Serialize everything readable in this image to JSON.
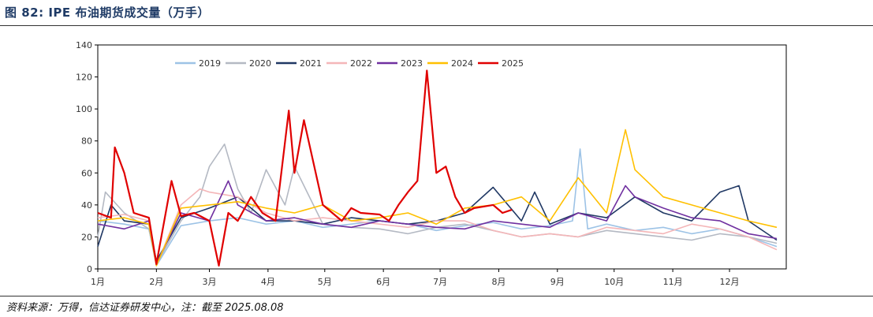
{
  "header": {
    "title": "图 82:  IPE 布油期货成交量（万手）"
  },
  "footer": {
    "source": "资料来源：万得，信达证券研发中心，注：截至 2025.08.08"
  },
  "chart_data": {
    "type": "line",
    "title": "IPE 布油期货成交量（万手）",
    "xlabel": "",
    "ylabel": "",
    "ylim": [
      0,
      140
    ],
    "yticks": [
      0,
      20,
      40,
      60,
      80,
      100,
      120,
      140
    ],
    "month_labels": [
      "1月",
      "2月",
      "3月",
      "4月",
      "5月",
      "6月",
      "7月",
      "8月",
      "9月",
      "10月",
      "11月",
      "12月"
    ],
    "x_unit": "day of year (approx.)",
    "legend_position": "top-center",
    "series": [
      {
        "name": "2019",
        "color": "#9dc3e6",
        "x": [
          1,
          15,
          28,
          32,
          45,
          60,
          75,
          90,
          105,
          120,
          135,
          150,
          165,
          180,
          195,
          210,
          225,
          240,
          252,
          256,
          260,
          270,
          285,
          300,
          315,
          330,
          345,
          360
        ],
        "values": [
          30,
          28,
          25,
          2,
          27,
          30,
          32,
          28,
          30,
          26,
          28,
          30,
          28,
          24,
          27,
          29,
          25,
          27,
          30,
          75,
          25,
          28,
          24,
          26,
          22,
          25,
          20,
          14
        ]
      },
      {
        "name": "2020",
        "color": "#b4b9c3",
        "x": [
          1,
          5,
          15,
          28,
          32,
          45,
          55,
          60,
          68,
          75,
          82,
          90,
          100,
          105,
          120,
          135,
          150,
          165,
          180,
          195,
          210,
          225,
          240,
          255,
          270,
          285,
          300,
          315,
          330,
          345,
          360
        ],
        "values": [
          20,
          48,
          35,
          25,
          3,
          30,
          45,
          64,
          78,
          50,
          35,
          62,
          40,
          64,
          28,
          26,
          25,
          22,
          26,
          28,
          24,
          20,
          22,
          20,
          24,
          22,
          20,
          18,
          22,
          20,
          16
        ]
      },
      {
        "name": "2021",
        "color": "#203864",
        "x": [
          1,
          8,
          15,
          28,
          32,
          45,
          60,
          75,
          90,
          105,
          120,
          135,
          150,
          165,
          180,
          195,
          210,
          225,
          232,
          240,
          255,
          270,
          285,
          300,
          315,
          330,
          340,
          345,
          360
        ],
        "values": [
          14,
          40,
          30,
          28,
          5,
          32,
          38,
          45,
          30,
          30,
          28,
          32,
          30,
          28,
          30,
          35,
          51,
          30,
          48,
          28,
          35,
          32,
          45,
          35,
          30,
          48,
          52,
          30,
          18
        ]
      },
      {
        "name": "2022",
        "color": "#f4b6b8",
        "x": [
          1,
          15,
          28,
          32,
          45,
          55,
          60,
          75,
          90,
          105,
          120,
          135,
          150,
          165,
          180,
          195,
          210,
          225,
          240,
          255,
          270,
          285,
          300,
          315,
          330,
          345,
          360
        ],
        "values": [
          32,
          34,
          30,
          2,
          40,
          50,
          48,
          45,
          35,
          30,
          32,
          30,
          28,
          26,
          30,
          30,
          24,
          20,
          22,
          20,
          26,
          24,
          22,
          28,
          25,
          20,
          12
        ]
      },
      {
        "name": "2023",
        "color": "#7030a0",
        "x": [
          1,
          15,
          28,
          32,
          45,
          60,
          70,
          75,
          90,
          105,
          120,
          135,
          150,
          165,
          180,
          195,
          210,
          225,
          240,
          255,
          270,
          280,
          285,
          300,
          315,
          330,
          345,
          360
        ],
        "values": [
          28,
          25,
          30,
          3,
          35,
          30,
          55,
          40,
          30,
          32,
          28,
          26,
          30,
          28,
          26,
          25,
          30,
          28,
          26,
          35,
          30,
          52,
          45,
          38,
          32,
          30,
          22,
          19
        ]
      },
      {
        "name": "2024",
        "color": "#ffc000",
        "x": [
          1,
          15,
          28,
          32,
          45,
          60,
          75,
          90,
          105,
          120,
          135,
          150,
          165,
          180,
          195,
          210,
          225,
          240,
          255,
          270,
          280,
          285,
          300,
          315,
          330,
          345,
          360
        ],
        "values": [
          30,
          32,
          28,
          2,
          38,
          40,
          42,
          38,
          35,
          40,
          30,
          32,
          35,
          28,
          38,
          40,
          45,
          30,
          57,
          35,
          87,
          62,
          45,
          40,
          35,
          30,
          26
        ]
      },
      {
        "name": "2025",
        "color": "#e00000",
        "x": [
          1,
          8,
          10,
          15,
          20,
          28,
          32,
          40,
          45,
          52,
          60,
          65,
          70,
          75,
          82,
          88,
          95,
          102,
          105,
          110,
          120,
          125,
          130,
          135,
          140,
          150,
          155,
          160,
          165,
          170,
          175,
          180,
          185,
          190,
          195,
          200,
          210,
          215,
          220
        ],
        "values": [
          35,
          32,
          76,
          60,
          35,
          32,
          3,
          55,
          33,
          35,
          30,
          2,
          35,
          30,
          45,
          35,
          30,
          99,
          60,
          93,
          40,
          35,
          30,
          38,
          35,
          34,
          30,
          40,
          48,
          55,
          124,
          60,
          64,
          45,
          35,
          38,
          40,
          35,
          37
        ]
      }
    ]
  }
}
